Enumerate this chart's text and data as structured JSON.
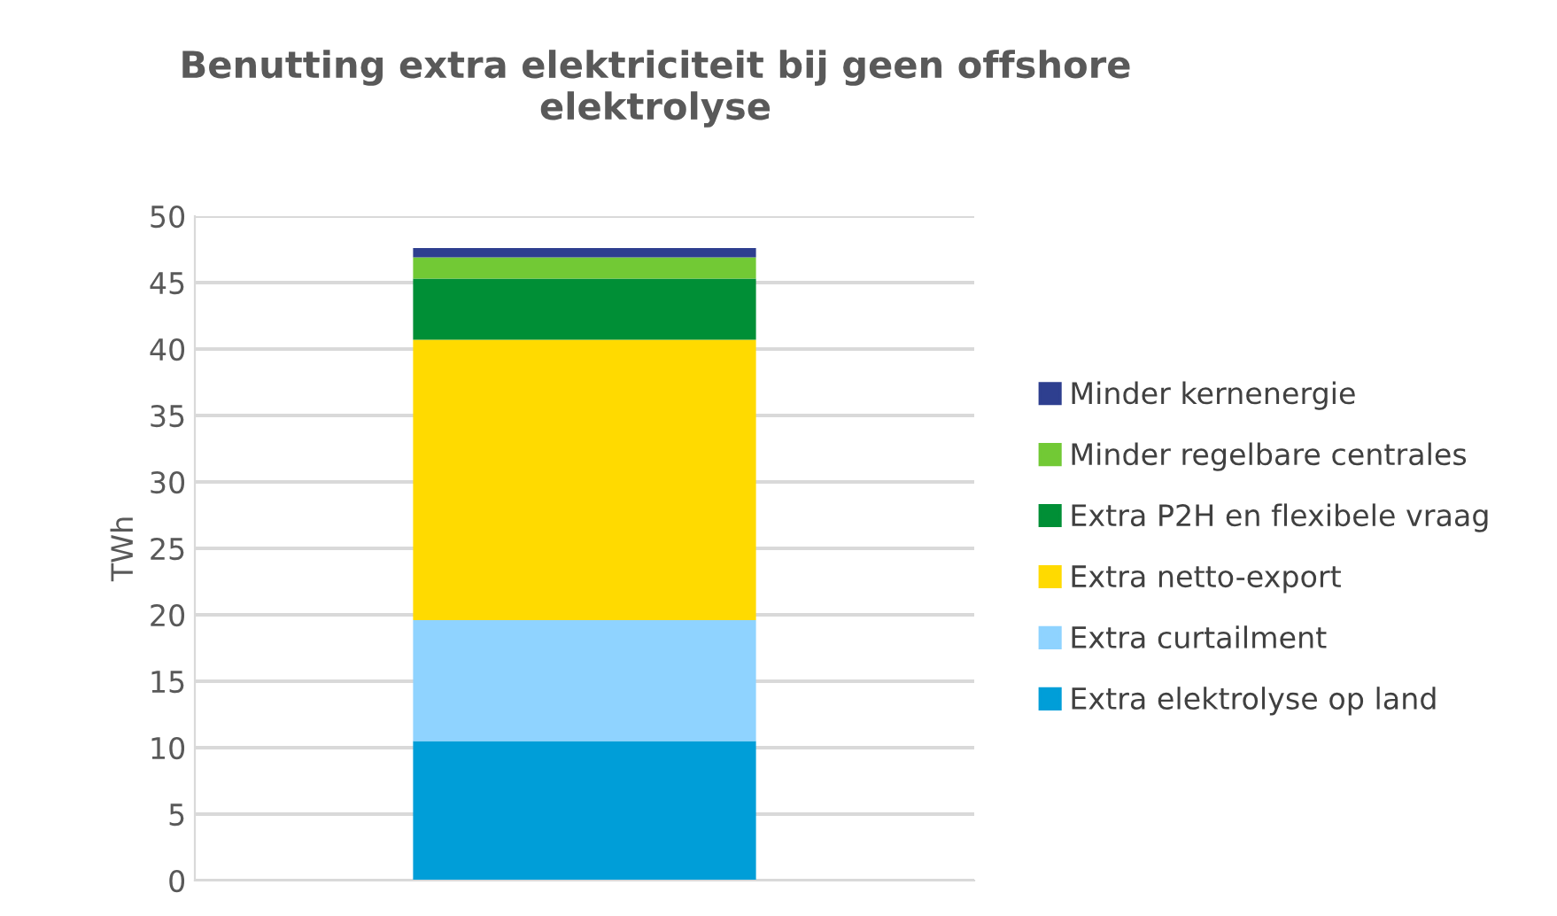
{
  "chart_data": {
    "type": "bar",
    "title": "Benutting extra elektriciteit bij geen offshore\nelektrolyse",
    "ylabel": "TWh",
    "categories": [
      null
    ],
    "stacked": true,
    "ylim": [
      0,
      50
    ],
    "yticks": [
      0,
      5,
      10,
      15,
      20,
      25,
      30,
      35,
      40,
      45,
      50
    ],
    "grid": "y",
    "legend": "right",
    "series": [
      {
        "name": "Extra elektrolyse op land",
        "color": "#009ed8",
        "values": [
          10.5
        ]
      },
      {
        "name": "Extra curtailment",
        "color": "#8fd3ff",
        "values": [
          9.1
        ]
      },
      {
        "name": "Extra netto-export",
        "color": "#ffda00",
        "values": [
          21.1
        ]
      },
      {
        "name": "Extra P2H en flexibele vraag",
        "color": "#008f36",
        "values": [
          4.6
        ]
      },
      {
        "name": "Minder regelbare centrales",
        "color": "#72c935",
        "values": [
          1.6
        ]
      },
      {
        "name": "Minder kernenergie",
        "color": "#2e3f8f",
        "values": [
          0.7
        ]
      }
    ]
  }
}
